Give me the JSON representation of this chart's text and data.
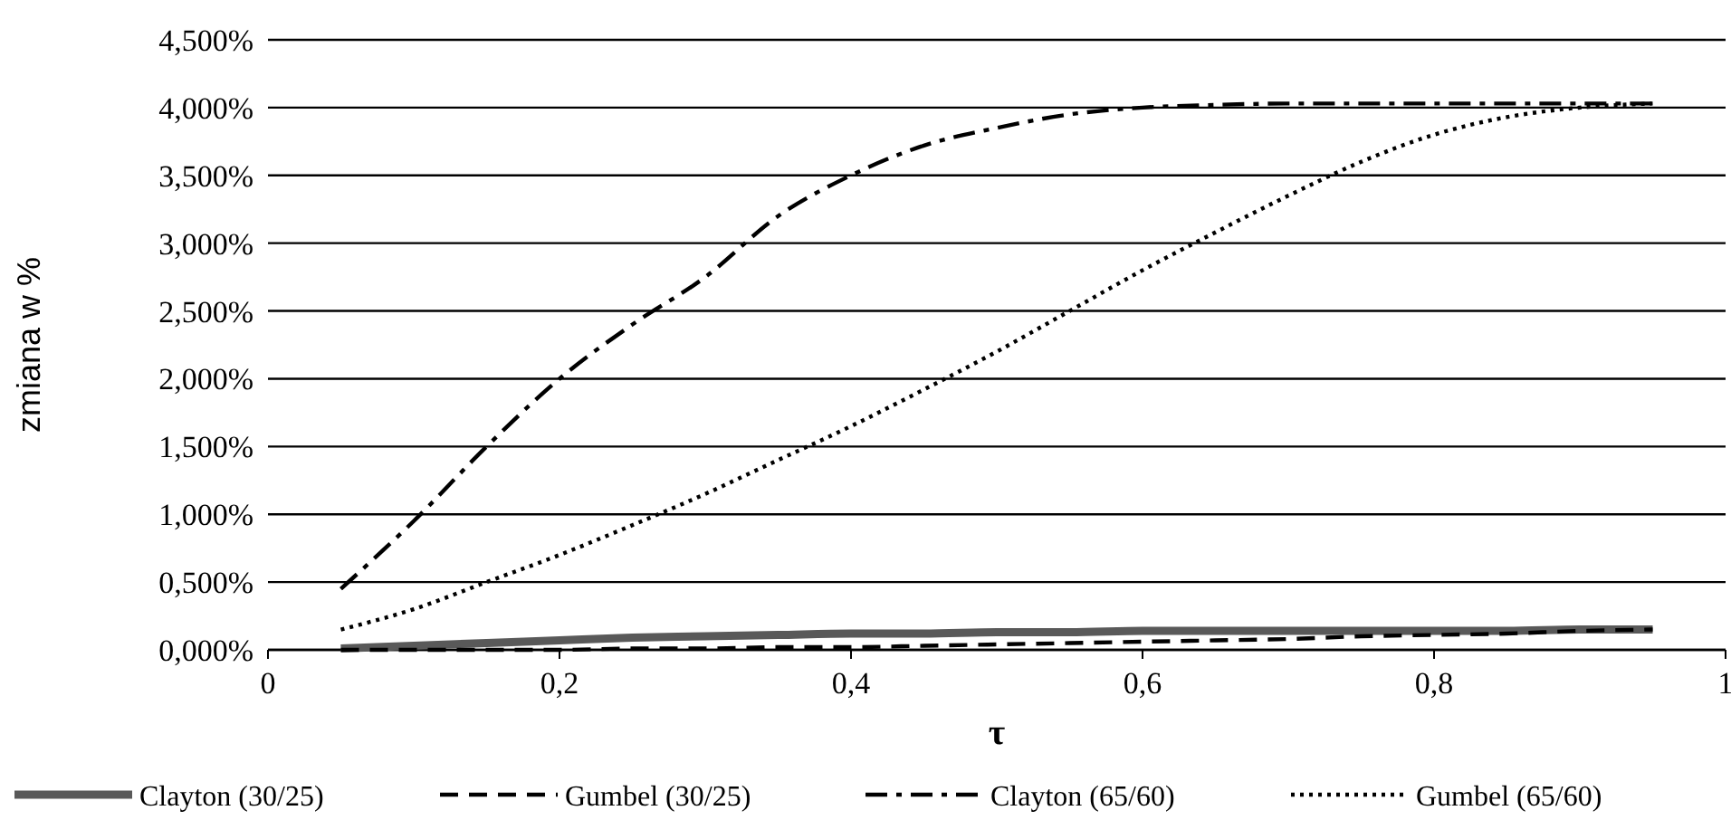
{
  "chart_data": {
    "type": "line",
    "xlabel": "τ",
    "ylabel": "zmiana w %",
    "x": [
      0.05,
      0.1,
      0.15,
      0.2,
      0.25,
      0.3,
      0.35,
      0.4,
      0.45,
      0.5,
      0.55,
      0.6,
      0.65,
      0.7,
      0.75,
      0.8,
      0.85,
      0.9,
      0.95
    ],
    "series": [
      {
        "name": "Clayton (30/25)",
        "color": "#595959",
        "line_style": "solid",
        "values": [
          0.01,
          0.03,
          0.05,
          0.07,
          0.09,
          0.1,
          0.11,
          0.12,
          0.12,
          0.13,
          0.13,
          0.14,
          0.14,
          0.14,
          0.14,
          0.14,
          0.14,
          0.15,
          0.15
        ]
      },
      {
        "name": "Gumbel (30/25)",
        "color": "#000000",
        "line_style": "dashed",
        "values": [
          0,
          0,
          0,
          0,
          0.01,
          0.01,
          0.02,
          0.02,
          0.03,
          0.04,
          0.05,
          0.06,
          0.07,
          0.08,
          0.1,
          0.11,
          0.12,
          0.14,
          0.15
        ]
      },
      {
        "name": "Clayton (65/60)",
        "color": "#000000",
        "line_style": "dashdot",
        "values": [
          0.45,
          0.95,
          1.5,
          2.0,
          2.4,
          2.75,
          3.2,
          3.5,
          3.72,
          3.85,
          3.95,
          4.0,
          4.02,
          4.03,
          4.03,
          4.03,
          4.03,
          4.03,
          4.03
        ]
      },
      {
        "name": "Gumbel (65/60)",
        "color": "#000000",
        "line_style": "dotted",
        "values": [
          0.15,
          0.3,
          0.5,
          0.7,
          0.92,
          1.15,
          1.4,
          1.65,
          1.92,
          2.2,
          2.5,
          2.8,
          3.08,
          3.35,
          3.6,
          3.8,
          3.93,
          4.0,
          4.03
        ]
      }
    ],
    "xlim": [
      0,
      1
    ],
    "xticks": [
      0,
      {
        "value": 0.2,
        "label": "0,2"
      },
      {
        "value": 0.4,
        "label": "0,4"
      },
      {
        "value": 0.6,
        "label": "0,6"
      },
      {
        "value": 0.8,
        "label": "0,8"
      },
      1
    ],
    "ylim": [
      0,
      4.5
    ],
    "yticks": [
      {
        "value": 0,
        "label": "0,000%"
      },
      {
        "value": 0.5,
        "label": "0,500%"
      },
      {
        "value": 1,
        "label": "1,000%"
      },
      {
        "value": 1.5,
        "label": "1,500%"
      },
      {
        "value": 2,
        "label": "2,000%"
      },
      {
        "value": 2.5,
        "label": "2,500%"
      },
      {
        "value": 3,
        "label": "3,000%"
      },
      {
        "value": 3.5,
        "label": "3,500%"
      },
      {
        "value": 4,
        "label": "4,000%"
      },
      {
        "value": 4.5,
        "label": "4,500%"
      }
    ],
    "grid": "y",
    "legend": "bottom"
  }
}
